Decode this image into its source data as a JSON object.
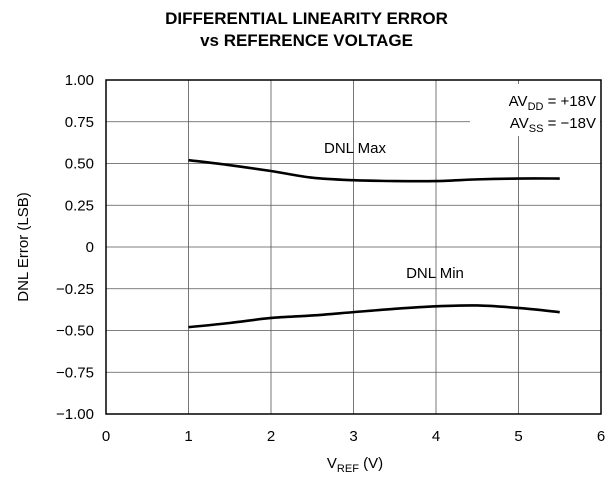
{
  "chart_data": {
    "type": "line",
    "title_line1": "DIFFERENTIAL LINEARITY ERROR",
    "title_line2": "vs REFERENCE VOLTAGE",
    "xlabel": {
      "main": "V",
      "sub": "REF",
      "suffix": " (V)"
    },
    "ylabel": "DNL Error (LSB)",
    "xlim": [
      0,
      6
    ],
    "ylim": [
      -1.0,
      1.0
    ],
    "xticks": [
      0,
      1,
      2,
      3,
      4,
      5,
      6
    ],
    "xtick_labels": [
      "0",
      "1",
      "2",
      "3",
      "4",
      "5",
      "6"
    ],
    "yticks": [
      1.0,
      0.75,
      0.5,
      0.25,
      0,
      -0.25,
      -0.5,
      -0.75,
      -1.0
    ],
    "ytick_labels": [
      "1.00",
      "0.75",
      "0.50",
      "0.25",
      "0",
      "−0.25",
      "−0.50",
      "−0.75",
      "−1.00"
    ],
    "grid": true,
    "annotations": {
      "avdd": {
        "main": "AV",
        "sub": "DD",
        "suffix": " = +18V"
      },
      "avss": {
        "main": "AV",
        "sub": "SS",
        "suffix": " = −18V"
      }
    },
    "series": [
      {
        "name": "DNL Max",
        "x": [
          1.0,
          1.5,
          2.0,
          2.5,
          3.0,
          3.5,
          4.0,
          4.5,
          5.0,
          5.5
        ],
        "y": [
          0.52,
          0.49,
          0.455,
          0.415,
          0.4,
          0.395,
          0.395,
          0.405,
          0.41,
          0.41
        ]
      },
      {
        "name": "DNL Min",
        "x": [
          1.0,
          1.5,
          2.0,
          2.5,
          3.0,
          3.5,
          4.0,
          4.5,
          5.0,
          5.5
        ],
        "y": [
          -0.48,
          -0.455,
          -0.425,
          -0.41,
          -0.39,
          -0.37,
          -0.355,
          -0.35,
          -0.365,
          -0.39
        ]
      }
    ]
  }
}
